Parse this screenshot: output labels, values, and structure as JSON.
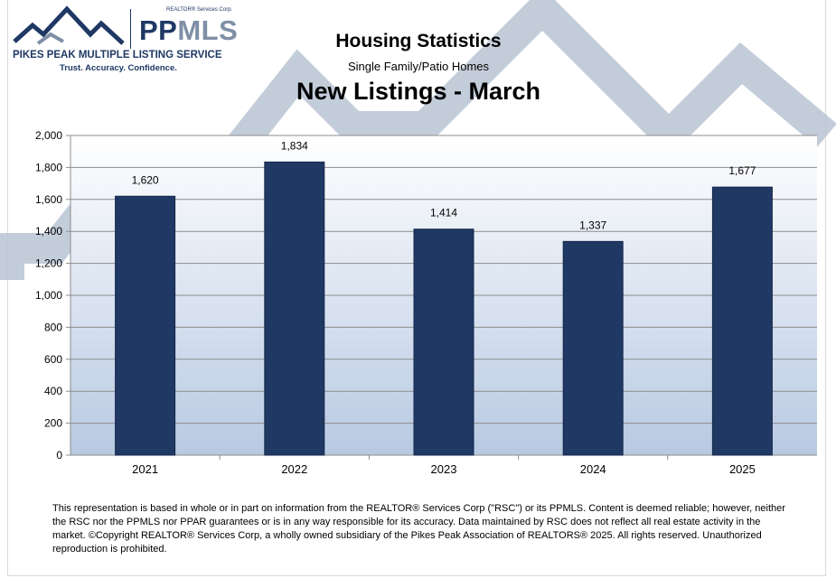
{
  "logo": {
    "brand_main": "PP",
    "brand_accent": "MLS",
    "provider": "REALTOR® Services Corp.",
    "name": "PIKES PEAK MULTIPLE LISTING SERVICE",
    "tagline": "Trust. Accuracy. Confidence."
  },
  "colors": {
    "bar": "#1f3864",
    "navy": "#1f3864",
    "mountain": "#b8c4d4",
    "plot_top": "#ffffff",
    "plot_bottom": "#b7c9e2",
    "grid": "#8c8c8c"
  },
  "chart_data": {
    "type": "bar",
    "title": "Housing Statistics",
    "subtitle": "Single Family/Patio Homes",
    "heading": "New Listings - March",
    "categories": [
      "2021",
      "2022",
      "2023",
      "2024",
      "2025"
    ],
    "values": [
      1620,
      1834,
      1414,
      1337,
      1677
    ],
    "value_labels": [
      "1,620",
      "1,834",
      "1,414",
      "1,337",
      "1,677"
    ],
    "ylim": [
      0,
      2000
    ],
    "yticks": [
      0,
      200,
      400,
      600,
      800,
      1000,
      1200,
      1400,
      1600,
      1800,
      2000
    ],
    "ytick_labels": [
      "0",
      "200",
      "400",
      "600",
      "800",
      "1,000",
      "1,200",
      "1,400",
      "1,600",
      "1,800",
      "2,000"
    ],
    "grid": true,
    "legend": "none"
  },
  "footer": {
    "disclaimer": "This representation is based in whole or in part on information from the REALTOR® Services Corp (\"RSC\") or its PPMLS. Content is deemed reliable; however, neither the RSC nor the PPMLS nor PPAR guarantees or is in any way responsible for its accuracy. Data maintained by RSC does not reflect all real estate activity in the market. ©Copyright REALTOR® Services Corp, a wholly owned subsidiary of the Pikes Peak Association of REALTORS® 2025.  All rights reserved. Unauthorized reproduction is prohibited."
  }
}
